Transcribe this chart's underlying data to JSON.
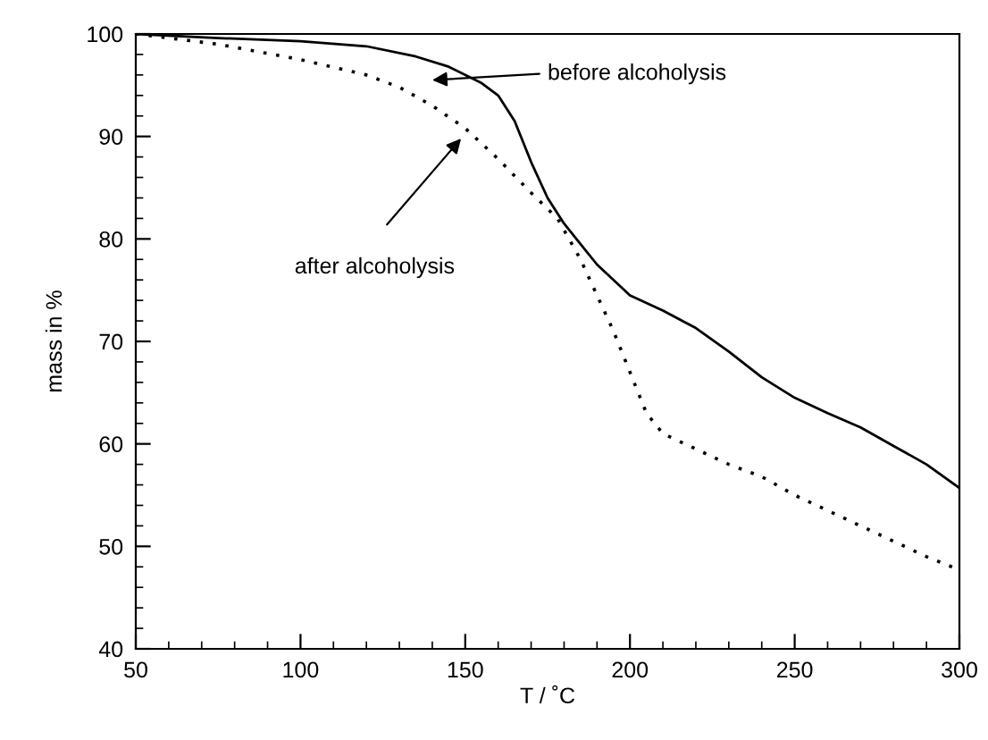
{
  "chart_data": {
    "type": "line",
    "xlabel": "T / ˚C",
    "ylabel": "mass in %",
    "xlim": [
      50,
      300
    ],
    "ylim": [
      40,
      100
    ],
    "xticks": [
      50,
      100,
      150,
      200,
      250,
      300
    ],
    "yticks": [
      40,
      50,
      60,
      70,
      80,
      90,
      100
    ],
    "grid": false,
    "legend": false,
    "marker": "none",
    "series": [
      {
        "name": null,
        "color": "#000000",
        "line_style": "solid",
        "x": [
          50,
          75,
          100,
          120,
          135,
          145,
          155,
          160,
          165,
          170,
          175,
          180,
          185,
          190,
          195,
          200,
          210,
          220,
          230,
          240,
          250,
          260,
          270,
          280,
          290,
          300
        ],
        "values": [
          100,
          99.6,
          99.3,
          98.8,
          97.8,
          96.8,
          95.2,
          94,
          91.5,
          87.5,
          84,
          81.5,
          79.5,
          77.5,
          76,
          74.5,
          73,
          71.3,
          69,
          66.5,
          64.5,
          63,
          61.6,
          59.8,
          58,
          55.7
        ]
      },
      {
        "name": null,
        "color": "#000000",
        "line_style": "dotted",
        "x": [
          50,
          75,
          100,
          120,
          130,
          140,
          150,
          160,
          170,
          178,
          185,
          190,
          195,
          200,
          205,
          210,
          220,
          230,
          240,
          250,
          260,
          270,
          280,
          290,
          300
        ],
        "values": [
          100,
          99,
          97.5,
          96,
          94.8,
          93,
          90.8,
          87.8,
          84.5,
          82,
          78,
          74.5,
          71,
          67,
          63,
          61,
          59.5,
          58,
          56.8,
          55,
          53.5,
          52,
          50.5,
          49,
          47.7
        ]
      }
    ],
    "annotations": [
      "before alcoholysis",
      "after alcoholysis"
    ]
  }
}
